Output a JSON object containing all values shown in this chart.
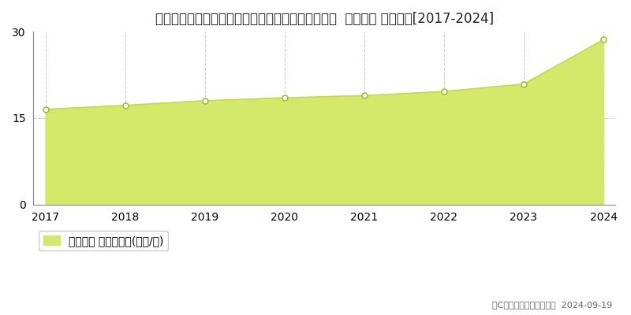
{
  "title": "宮城県仙台市青葉区双葉ケ丘１丁目１１８番１０４  基準地価 地価推移[2017-2024]",
  "years": [
    2017,
    2018,
    2019,
    2020,
    2021,
    2022,
    2023,
    2024
  ],
  "values": [
    16.5,
    17.2,
    18.0,
    18.5,
    18.9,
    19.6,
    20.9,
    28.6
  ],
  "ylim": [
    0,
    30
  ],
  "yticks": [
    0,
    15,
    30
  ],
  "line_color": "#c8d84a",
  "fill_color": "#d4e86a",
  "fill_alpha": 1.0,
  "marker_facecolor": "#ffffff",
  "marker_edgecolor": "#a8c030",
  "grid_color_v": "#bbbbbb",
  "grid_color_h": "#bbbbbb",
  "background_color": "#ffffff",
  "plot_bg_color": "#ffffff",
  "legend_label": "基準地価 平均坪単価(万円/坪)",
  "copyright_text": "（C）土地価格ドットコム  2024-09-19",
  "title_fontsize": 12,
  "tick_fontsize": 10,
  "legend_fontsize": 10,
  "copyright_fontsize": 8
}
